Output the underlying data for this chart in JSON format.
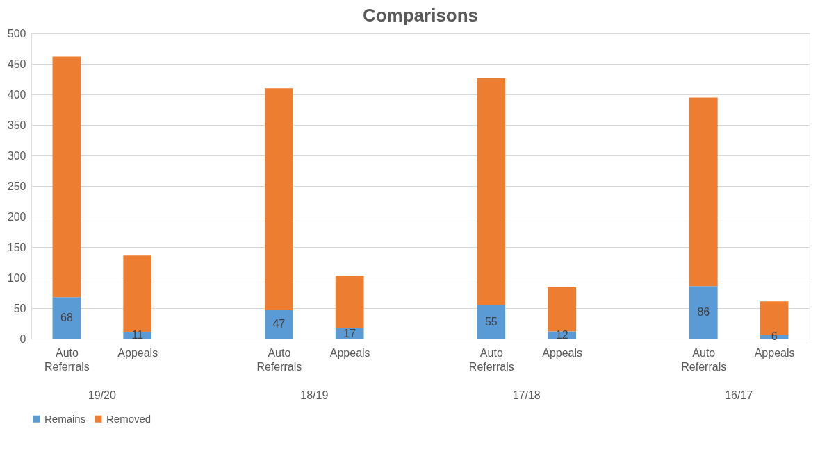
{
  "chart_data": {
    "type": "bar",
    "title": "Comparisons",
    "stacked": true,
    "categories": [
      "Auto Referrals",
      "Appeals",
      null,
      "Auto Referrals",
      "Appeals",
      null,
      "Auto Referrals",
      "Appeals",
      null,
      "Auto Referrals",
      "Appeals"
    ],
    "series": [
      {
        "name": "Remains",
        "color": "#5b9bd5",
        "values": [
          68,
          11,
          null,
          47,
          17,
          null,
          55,
          12,
          null,
          86,
          6
        ],
        "value_labels": [
          "68",
          "11",
          null,
          "47",
          "17",
          null,
          "55",
          "12",
          null,
          "86",
          "6"
        ]
      },
      {
        "name": "Removed",
        "color": "#ed7d31",
        "values": [
          394,
          125,
          null,
          363,
          86,
          null,
          371,
          72,
          null,
          309,
          55
        ]
      }
    ],
    "annotations": [
      "19/20",
      "18/19",
      "17/18",
      "16/17"
    ],
    "ylim": [
      0,
      500
    ],
    "yticks": [
      0,
      50,
      100,
      150,
      200,
      250,
      300,
      350,
      400,
      450,
      500
    ],
    "grid": "y",
    "legend": "bottom"
  }
}
